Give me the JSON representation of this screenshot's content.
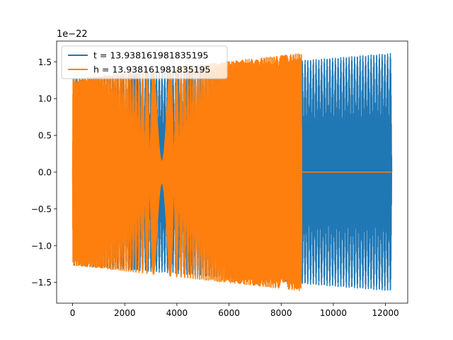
{
  "chart_data": {
    "type": "line",
    "title": "",
    "xlabel": "",
    "ylabel": "",
    "y_offset_text": "1e−22",
    "xlim": [
      -612,
      12852
    ],
    "ylim": [
      -1.782,
      1.782
    ],
    "x_ticks": [
      0,
      2000,
      4000,
      6000,
      8000,
      10000,
      12000
    ],
    "x_tick_labels": [
      "0",
      "2000",
      "4000",
      "6000",
      "8000",
      "10000",
      "12000"
    ],
    "y_ticks": [
      -1.5,
      -1.0,
      -0.5,
      0.0,
      0.5,
      1.0,
      1.5
    ],
    "y_tick_labels": [
      "−1.5",
      "−1.0",
      "−0.5",
      "0.0",
      "0.5",
      "1.0",
      "1.5"
    ],
    "grid": false,
    "legend_position": "top-left",
    "series": [
      {
        "name": "t = 13.938161981835195",
        "color": "#1f77b4",
        "x_range": [
          0,
          12240
        ],
        "envelope_start": 1.27,
        "envelope_end": 1.62,
        "cycles": 140,
        "chirp": 1.0
      },
      {
        "name": "h = 13.938161981835195",
        "color": "#ff7f0e",
        "x_range": [
          0,
          8790
        ],
        "envelope_start": 1.27,
        "envelope_end": 1.62,
        "cycles": 120,
        "chirp": 1.3,
        "tail_x_range": [
          8790,
          12240
        ],
        "tail_value": 0.0
      }
    ]
  }
}
